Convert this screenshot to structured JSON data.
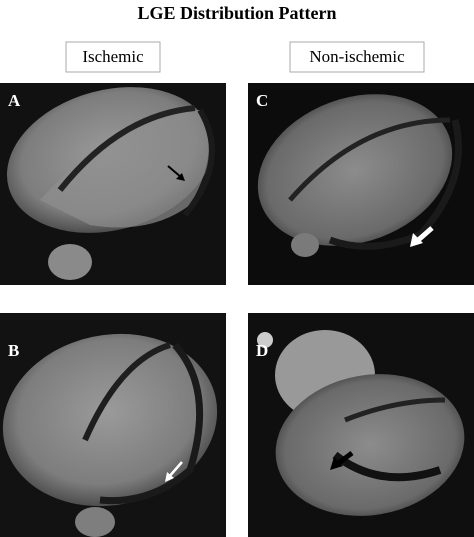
{
  "title": "LGE Distribution Pattern",
  "columns": [
    "Ischemic",
    "Non-ischemic"
  ],
  "panels": [
    {
      "label": "A"
    },
    {
      "label": "B"
    },
    {
      "label": "C"
    },
    {
      "label": "D"
    }
  ]
}
